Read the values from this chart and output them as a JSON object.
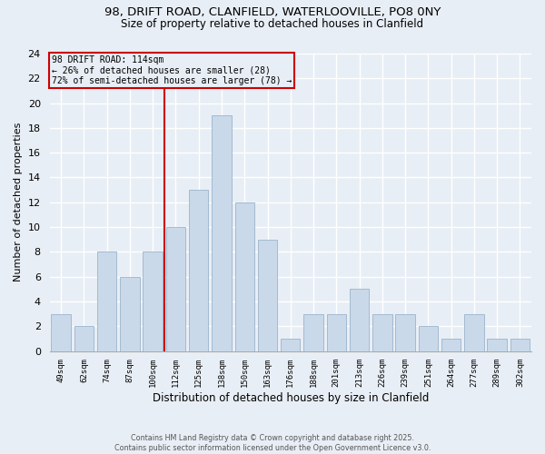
{
  "title1": "98, DRIFT ROAD, CLANFIELD, WATERLOOVILLE, PO8 0NY",
  "title2": "Size of property relative to detached houses in Clanfield",
  "xlabel": "Distribution of detached houses by size in Clanfield",
  "ylabel": "Number of detached properties",
  "categories": [
    "49sqm",
    "62sqm",
    "74sqm",
    "87sqm",
    "100sqm",
    "112sqm",
    "125sqm",
    "138sqm",
    "150sqm",
    "163sqm",
    "176sqm",
    "188sqm",
    "201sqm",
    "213sqm",
    "226sqm",
    "239sqm",
    "251sqm",
    "264sqm",
    "277sqm",
    "289sqm",
    "302sqm"
  ],
  "values": [
    3,
    2,
    8,
    6,
    8,
    10,
    13,
    19,
    12,
    9,
    1,
    3,
    3,
    5,
    3,
    3,
    2,
    1,
    3,
    1,
    1
  ],
  "bar_color": "#c9d9ea",
  "bar_edge_color": "#9ab4cc",
  "vline_color": "#cc0000",
  "vline_idx": 4.5,
  "annotation_title": "98 DRIFT ROAD: 114sqm",
  "annotation_line1": "← 26% of detached houses are smaller (28)",
  "annotation_line2": "72% of semi-detached houses are larger (78) →",
  "annotation_box_color": "#cc0000",
  "ylim": [
    0,
    24
  ],
  "yticks": [
    0,
    2,
    4,
    6,
    8,
    10,
    12,
    14,
    16,
    18,
    20,
    22,
    24
  ],
  "footnote": "Contains HM Land Registry data © Crown copyright and database right 2025.\nContains public sector information licensed under the Open Government Licence v3.0.",
  "bg_color": "#e8eef5",
  "grid_color": "#ffffff",
  "title1_fontsize": 9.5,
  "title2_fontsize": 8.5
}
